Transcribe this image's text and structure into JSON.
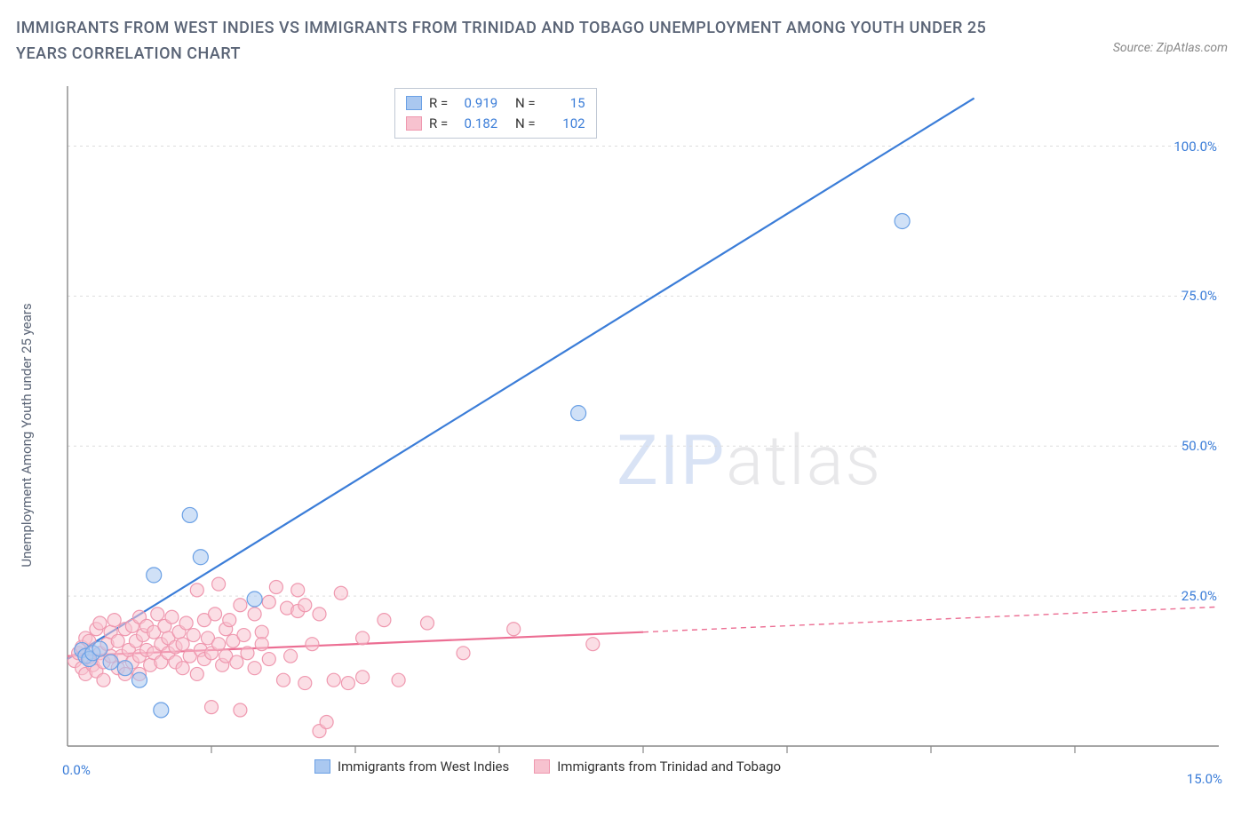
{
  "title": "IMMIGRANTS FROM WEST INDIES VS IMMIGRANTS FROM TRINIDAD AND TOBAGO UNEMPLOYMENT AMONG YOUTH UNDER 25 YEARS CORRELATION CHART",
  "source": "Source: ZipAtlas.com",
  "watermark_a": "ZIP",
  "watermark_b": "atlas",
  "y_axis_label": "Unemployment Among Youth under 25 years",
  "chart": {
    "type": "scatter",
    "xlim": [
      0,
      16
    ],
    "ylim": [
      0,
      110
    ],
    "x_zero_label": "0.0%",
    "y_bottom_label": "15.0%",
    "y_ticks": [
      25,
      50,
      75,
      100
    ],
    "y_tick_labels": [
      "25.0%",
      "50.0%",
      "75.0%",
      "100.0%"
    ],
    "x_ticks": [
      2,
      4,
      6,
      8,
      10,
      12,
      14
    ],
    "grid_color": "#dddddd",
    "axis_color": "#888888",
    "series": {
      "blue": {
        "label": "Immigrants from West Indies",
        "fill": "#aac8f0",
        "stroke": "#6aa0e5",
        "line_color": "#3b7dd8",
        "R": "0.919",
        "N": "15",
        "trend": {
          "x1": 0.0,
          "y1": 14.5,
          "x2": 12.6,
          "y2": 108
        },
        "points": [
          [
            0.2,
            16.0
          ],
          [
            0.25,
            15.0
          ],
          [
            0.3,
            14.5
          ],
          [
            0.35,
            15.5
          ],
          [
            0.45,
            16.2
          ],
          [
            0.6,
            14.0
          ],
          [
            0.8,
            13.0
          ],
          [
            1.0,
            11.0
          ],
          [
            1.2,
            28.5
          ],
          [
            1.3,
            6.0
          ],
          [
            1.7,
            38.5
          ],
          [
            1.85,
            31.5
          ],
          [
            2.6,
            24.5
          ],
          [
            7.1,
            55.5
          ],
          [
            11.6,
            87.5
          ]
        ]
      },
      "pink": {
        "label": "Immigrants from Trinidad and Tobago",
        "fill": "#f7c2cf",
        "stroke": "#ef98af",
        "line_color": "#ec6e93",
        "R": "0.182",
        "N": "102",
        "trend_solid": {
          "x1": 0.0,
          "y1": 15.0,
          "x2": 8.0,
          "y2": 19.0
        },
        "trend_dash": {
          "x1": 8.0,
          "y1": 19.0,
          "x2": 16.0,
          "y2": 23.2
        },
        "points": [
          [
            0.1,
            14.2
          ],
          [
            0.15,
            15.5
          ],
          [
            0.2,
            13.0
          ],
          [
            0.2,
            16.5
          ],
          [
            0.25,
            12.0
          ],
          [
            0.25,
            18.0
          ],
          [
            0.3,
            14.8
          ],
          [
            0.3,
            17.5
          ],
          [
            0.35,
            13.5
          ],
          [
            0.4,
            19.5
          ],
          [
            0.4,
            12.5
          ],
          [
            0.45,
            15.5
          ],
          [
            0.45,
            20.5
          ],
          [
            0.5,
            14.0
          ],
          [
            0.5,
            11.0
          ],
          [
            0.55,
            17.0
          ],
          [
            0.6,
            19.0
          ],
          [
            0.6,
            15.0
          ],
          [
            0.65,
            21.0
          ],
          [
            0.7,
            13.0
          ],
          [
            0.7,
            17.5
          ],
          [
            0.75,
            15.0
          ],
          [
            0.8,
            19.5
          ],
          [
            0.8,
            12.0
          ],
          [
            0.85,
            16.0
          ],
          [
            0.9,
            20.0
          ],
          [
            0.9,
            14.0
          ],
          [
            0.95,
            17.5
          ],
          [
            1.0,
            21.5
          ],
          [
            1.0,
            15.0
          ],
          [
            1.0,
            12.0
          ],
          [
            1.05,
            18.5
          ],
          [
            1.1,
            16.0
          ],
          [
            1.1,
            20.0
          ],
          [
            1.15,
            13.5
          ],
          [
            1.2,
            19.0
          ],
          [
            1.2,
            15.5
          ],
          [
            1.25,
            22.0
          ],
          [
            1.3,
            17.0
          ],
          [
            1.3,
            14.0
          ],
          [
            1.35,
            20.0
          ],
          [
            1.4,
            15.5
          ],
          [
            1.4,
            18.0
          ],
          [
            1.45,
            21.5
          ],
          [
            1.5,
            14.0
          ],
          [
            1.5,
            16.5
          ],
          [
            1.55,
            19.0
          ],
          [
            1.6,
            13.0
          ],
          [
            1.6,
            17.0
          ],
          [
            1.65,
            20.5
          ],
          [
            1.7,
            15.0
          ],
          [
            1.75,
            18.5
          ],
          [
            1.8,
            12.0
          ],
          [
            1.8,
            26.0
          ],
          [
            1.85,
            16.0
          ],
          [
            1.9,
            21.0
          ],
          [
            1.9,
            14.5
          ],
          [
            1.95,
            18.0
          ],
          [
            2.0,
            15.5
          ],
          [
            2.0,
            6.5
          ],
          [
            2.05,
            22.0
          ],
          [
            2.1,
            17.0
          ],
          [
            2.1,
            27.0
          ],
          [
            2.15,
            13.5
          ],
          [
            2.2,
            19.5
          ],
          [
            2.2,
            15.0
          ],
          [
            2.25,
            21.0
          ],
          [
            2.3,
            17.5
          ],
          [
            2.35,
            14.0
          ],
          [
            2.4,
            23.5
          ],
          [
            2.4,
            6.0
          ],
          [
            2.45,
            18.5
          ],
          [
            2.5,
            15.5
          ],
          [
            2.6,
            22.0
          ],
          [
            2.6,
            13.0
          ],
          [
            2.7,
            19.0
          ],
          [
            2.7,
            17.0
          ],
          [
            2.8,
            24.0
          ],
          [
            2.8,
            14.5
          ],
          [
            2.9,
            26.5
          ],
          [
            3.0,
            11.0
          ],
          [
            3.05,
            23.0
          ],
          [
            3.1,
            15.0
          ],
          [
            3.2,
            22.5
          ],
          [
            3.2,
            26.0
          ],
          [
            3.3,
            10.5
          ],
          [
            3.3,
            23.5
          ],
          [
            3.4,
            17.0
          ],
          [
            3.5,
            22.0
          ],
          [
            3.5,
            2.5
          ],
          [
            3.6,
            4.0
          ],
          [
            3.7,
            11.0
          ],
          [
            3.8,
            25.5
          ],
          [
            3.9,
            10.5
          ],
          [
            4.1,
            11.5
          ],
          [
            4.1,
            18.0
          ],
          [
            4.4,
            21.0
          ],
          [
            4.6,
            11.0
          ],
          [
            5.0,
            20.5
          ],
          [
            5.5,
            15.5
          ],
          [
            6.2,
            19.5
          ],
          [
            7.3,
            17.0
          ]
        ]
      }
    }
  },
  "stats_labels": {
    "r": "R =",
    "n": "N ="
  }
}
